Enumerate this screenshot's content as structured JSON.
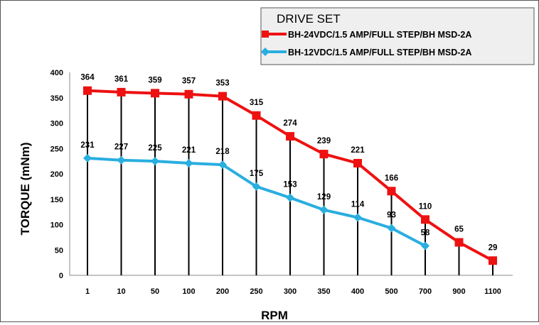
{
  "chart_data": {
    "type": "line",
    "title": "",
    "xlabel": "RPM",
    "ylabel": "TORQUE (mNm)",
    "categories": [
      "1",
      "10",
      "50",
      "100",
      "200",
      "250",
      "300",
      "350",
      "400",
      "500",
      "700",
      "900",
      "1100"
    ],
    "ylim": [
      0,
      400
    ],
    "yticks": [
      0,
      50,
      100,
      150,
      200,
      250,
      300,
      350,
      400
    ],
    "grid": false,
    "legend": {
      "title": "DRIVE SET",
      "position": "top-right"
    },
    "series": [
      {
        "name": "BH-24VDC/1.5 AMP/FULL STEP/BH MSD-2A",
        "color": "#ee1111",
        "marker": "square",
        "values": [
          364,
          361,
          359,
          357,
          353,
          315,
          274,
          239,
          221,
          166,
          110,
          65,
          29
        ],
        "labels": [
          "364",
          "361",
          "359",
          "357",
          "353",
          "315",
          "274",
          "239",
          "221",
          "166",
          "110",
          "65",
          "29"
        ]
      },
      {
        "name": "BH-12VDC/1.5 AMP/FULL STEP/BH MSD-2A",
        "color": "#29aee0",
        "marker": "diamond",
        "values": [
          231,
          227,
          225,
          221,
          218,
          175,
          153,
          129,
          114,
          93,
          58,
          null,
          null
        ],
        "labels": [
          "231",
          "227",
          "225",
          "221",
          "218",
          "175",
          "153",
          "129",
          "114",
          "93",
          "58",
          null,
          null
        ]
      }
    ]
  }
}
